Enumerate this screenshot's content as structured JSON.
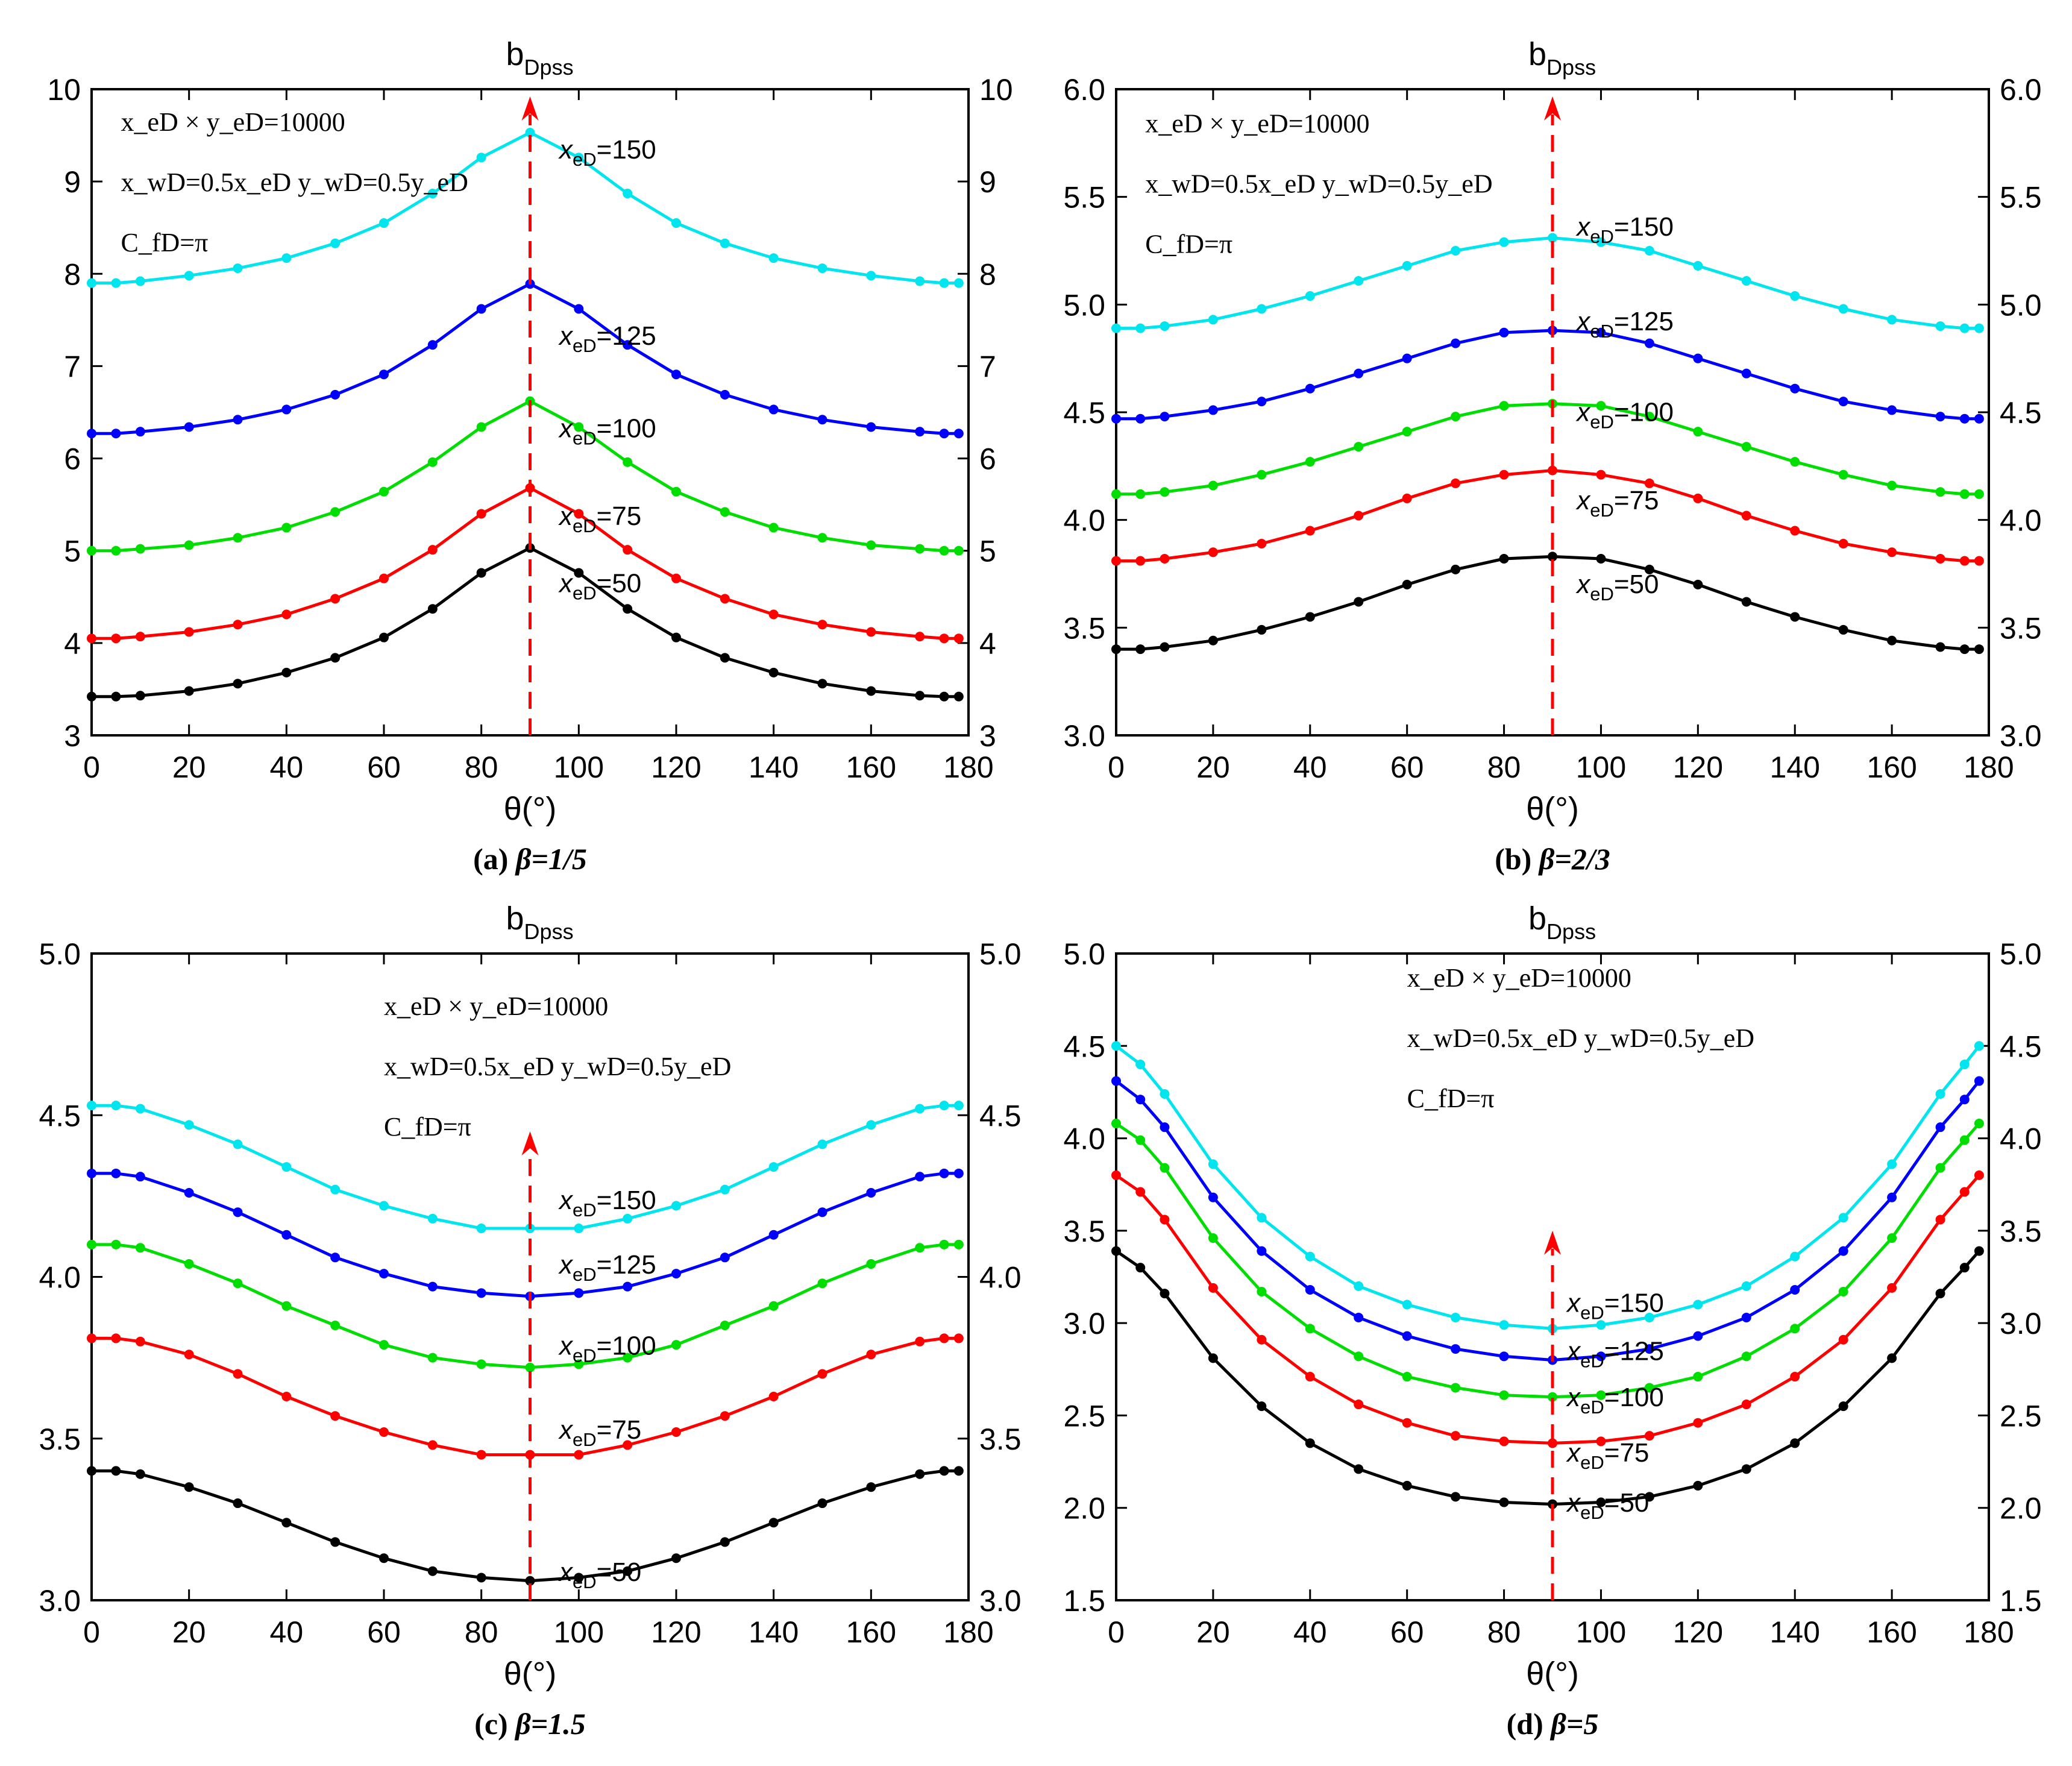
{
  "figure": {
    "x_values": [
      0,
      5,
      10,
      20,
      30,
      40,
      50,
      60,
      70,
      80,
      90,
      100,
      110,
      120,
      130,
      140,
      150,
      160,
      170,
      175,
      178
    ],
    "annotation": {
      "line1": "x_eD × y_eD=10000",
      "line2": "x_wD=0.5x_eD    y_wD=0.5y_eD",
      "line3": "C_fD=π"
    },
    "marker_theta": 90
  },
  "chart_data": [
    {
      "type": "line",
      "panel": "a",
      "title": "bDpss",
      "title_main": "b",
      "title_sub": "Dpss",
      "xlabel": "θ(°)",
      "caption_prefix": "(a)",
      "caption_beta": "β=1/5",
      "xlim": [
        0,
        180
      ],
      "ylim": [
        3,
        10
      ],
      "xticks": [
        0,
        20,
        40,
        60,
        80,
        100,
        120,
        140,
        160,
        180
      ],
      "yticks": [
        "3",
        "4",
        "5",
        "6",
        "7",
        "8",
        "9",
        "10"
      ],
      "series": [
        {
          "name": "xeD=50",
          "label_var": "x",
          "label_sub": "eD",
          "label_val": "=50",
          "color": "#000000",
          "values": [
            3.42,
            3.42,
            3.43,
            3.48,
            3.56,
            3.68,
            3.84,
            4.06,
            4.37,
            4.76,
            5.03,
            4.76,
            4.37,
            4.06,
            3.84,
            3.68,
            3.56,
            3.48,
            3.43,
            3.42,
            3.42
          ]
        },
        {
          "name": "xeD=75",
          "label_var": "x",
          "label_sub": "eD",
          "label_val": "=75",
          "color": "#ff0000",
          "values": [
            4.05,
            4.05,
            4.07,
            4.12,
            4.2,
            4.31,
            4.48,
            4.7,
            5.01,
            5.4,
            5.68,
            5.4,
            5.01,
            4.7,
            4.48,
            4.31,
            4.2,
            4.12,
            4.07,
            4.05,
            4.05
          ]
        },
        {
          "name": "xeD=100",
          "label_var": "x",
          "label_sub": "eD",
          "label_val": "=100",
          "color": "#00dd00",
          "values": [
            5.0,
            5.0,
            5.02,
            5.06,
            5.14,
            5.25,
            5.42,
            5.64,
            5.96,
            6.34,
            6.62,
            6.34,
            5.96,
            5.64,
            5.42,
            5.25,
            5.14,
            5.06,
            5.02,
            5.0,
            5.0
          ]
        },
        {
          "name": "xeD=125",
          "label_var": "x",
          "label_sub": "eD",
          "label_val": "=125",
          "color": "#0000ff",
          "values": [
            6.27,
            6.27,
            6.29,
            6.34,
            6.42,
            6.53,
            6.69,
            6.91,
            7.23,
            7.62,
            7.89,
            7.62,
            7.23,
            6.91,
            6.69,
            6.53,
            6.42,
            6.34,
            6.29,
            6.27,
            6.27
          ]
        },
        {
          "name": "xeD=150",
          "label_var": "x",
          "label_sub": "eD",
          "label_val": "=150",
          "color": "#00e5ee",
          "values": [
            7.9,
            7.9,
            7.92,
            7.98,
            8.06,
            8.17,
            8.33,
            8.55,
            8.87,
            9.26,
            9.53,
            9.26,
            8.87,
            8.55,
            8.33,
            8.17,
            8.06,
            7.98,
            7.92,
            7.9,
            7.9
          ]
        }
      ]
    },
    {
      "type": "line",
      "panel": "b",
      "title": "bDpss",
      "title_main": "b",
      "title_sub": "Dpss",
      "xlabel": "θ(°)",
      "caption_prefix": "(b)",
      "caption_beta": "β=2/3",
      "xlim": [
        0,
        180
      ],
      "ylim": [
        3.0,
        6.0
      ],
      "xticks": [
        0,
        20,
        40,
        60,
        80,
        100,
        120,
        140,
        160,
        180
      ],
      "yticks": [
        "3.0",
        "3.5",
        "4.0",
        "4.5",
        "5.0",
        "5.5",
        "6.0"
      ],
      "series": [
        {
          "name": "xeD=50",
          "label_var": "x",
          "label_sub": "eD",
          "label_val": "=50",
          "color": "#000000",
          "values": [
            3.4,
            3.4,
            3.41,
            3.44,
            3.49,
            3.55,
            3.62,
            3.7,
            3.77,
            3.82,
            3.83,
            3.82,
            3.77,
            3.7,
            3.62,
            3.55,
            3.49,
            3.44,
            3.41,
            3.4,
            3.4
          ]
        },
        {
          "name": "xeD=75",
          "label_var": "x",
          "label_sub": "eD",
          "label_val": "=75",
          "color": "#ff0000",
          "values": [
            3.81,
            3.81,
            3.82,
            3.85,
            3.89,
            3.95,
            4.02,
            4.1,
            4.17,
            4.21,
            4.23,
            4.21,
            4.17,
            4.1,
            4.02,
            3.95,
            3.89,
            3.85,
            3.82,
            3.81,
            3.81
          ]
        },
        {
          "name": "xeD=100",
          "label_var": "x",
          "label_sub": "eD",
          "label_val": "=100",
          "color": "#00dd00",
          "values": [
            4.12,
            4.12,
            4.13,
            4.16,
            4.21,
            4.27,
            4.34,
            4.41,
            4.48,
            4.53,
            4.54,
            4.53,
            4.48,
            4.41,
            4.34,
            4.27,
            4.21,
            4.16,
            4.13,
            4.12,
            4.12
          ]
        },
        {
          "name": "xeD=125",
          "label_var": "x",
          "label_sub": "eD",
          "label_val": "=125",
          "color": "#0000ff",
          "values": [
            4.47,
            4.47,
            4.48,
            4.51,
            4.55,
            4.61,
            4.68,
            4.75,
            4.82,
            4.87,
            4.88,
            4.87,
            4.82,
            4.75,
            4.68,
            4.61,
            4.55,
            4.51,
            4.48,
            4.47,
            4.47
          ]
        },
        {
          "name": "xeD=150",
          "label_var": "x",
          "label_sub": "eD",
          "label_val": "=150",
          "color": "#00e5ee",
          "values": [
            4.89,
            4.89,
            4.9,
            4.93,
            4.98,
            5.04,
            5.11,
            5.18,
            5.25,
            5.29,
            5.31,
            5.29,
            5.25,
            5.18,
            5.11,
            5.04,
            4.98,
            4.93,
            4.9,
            4.89,
            4.89
          ]
        }
      ]
    },
    {
      "type": "line",
      "panel": "c",
      "title": "bDpss",
      "title_main": "b",
      "title_sub": "Dpss",
      "xlabel": "θ(°)",
      "caption_prefix": "(c)",
      "caption_beta": "β=1.5",
      "xlim": [
        0,
        180
      ],
      "ylim": [
        3.0,
        5.0
      ],
      "xticks": [
        0,
        20,
        40,
        60,
        80,
        100,
        120,
        140,
        160,
        180
      ],
      "yticks": [
        "3.0",
        "3.5",
        "4.0",
        "4.5",
        "5.0"
      ],
      "series": [
        {
          "name": "xeD=50",
          "label_var": "x",
          "label_sub": "eD",
          "label_val": "=50",
          "color": "#000000",
          "values": [
            3.4,
            3.4,
            3.39,
            3.35,
            3.3,
            3.24,
            3.18,
            3.13,
            3.09,
            3.07,
            3.06,
            3.07,
            3.09,
            3.13,
            3.18,
            3.24,
            3.3,
            3.35,
            3.39,
            3.4,
            3.4
          ]
        },
        {
          "name": "xeD=75",
          "label_var": "x",
          "label_sub": "eD",
          "label_val": "=75",
          "color": "#ff0000",
          "values": [
            3.81,
            3.81,
            3.8,
            3.76,
            3.7,
            3.63,
            3.57,
            3.52,
            3.48,
            3.45,
            3.45,
            3.45,
            3.48,
            3.52,
            3.57,
            3.63,
            3.7,
            3.76,
            3.8,
            3.81,
            3.81
          ]
        },
        {
          "name": "xeD=100",
          "label_var": "x",
          "label_sub": "eD",
          "label_val": "=100",
          "color": "#00dd00",
          "values": [
            4.1,
            4.1,
            4.09,
            4.04,
            3.98,
            3.91,
            3.85,
            3.79,
            3.75,
            3.73,
            3.72,
            3.73,
            3.75,
            3.79,
            3.85,
            3.91,
            3.98,
            4.04,
            4.09,
            4.1,
            4.1
          ]
        },
        {
          "name": "xeD=125",
          "label_var": "x",
          "label_sub": "eD",
          "label_val": "=125",
          "color": "#0000ff",
          "values": [
            4.32,
            4.32,
            4.31,
            4.26,
            4.2,
            4.13,
            4.06,
            4.01,
            3.97,
            3.95,
            3.94,
            3.95,
            3.97,
            4.01,
            4.06,
            4.13,
            4.2,
            4.26,
            4.31,
            4.32,
            4.32
          ]
        },
        {
          "name": "xeD=150",
          "label_var": "x",
          "label_sub": "eD",
          "label_val": "=150",
          "color": "#00e5ee",
          "values": [
            4.53,
            4.53,
            4.52,
            4.47,
            4.41,
            4.34,
            4.27,
            4.22,
            4.18,
            4.15,
            4.15,
            4.15,
            4.18,
            4.22,
            4.27,
            4.34,
            4.41,
            4.47,
            4.52,
            4.53,
            4.53
          ]
        }
      ]
    },
    {
      "type": "line",
      "panel": "d",
      "title": "bDpss",
      "title_main": "b",
      "title_sub": "Dpss",
      "xlabel": "θ(°)",
      "caption_prefix": "(d)",
      "caption_beta": "β=5",
      "xlim": [
        0,
        180
      ],
      "ylim": [
        1.5,
        5.0
      ],
      "xticks": [
        0,
        20,
        40,
        60,
        80,
        100,
        120,
        140,
        160,
        180
      ],
      "yticks": [
        "1.5",
        "2.0",
        "2.5",
        "3.0",
        "3.5",
        "4.0",
        "4.5",
        "5.0"
      ],
      "series": [
        {
          "name": "xeD=50",
          "label_var": "x",
          "label_sub": "eD",
          "label_val": "=50",
          "color": "#000000",
          "values": [
            3.39,
            3.3,
            3.16,
            2.81,
            2.55,
            2.35,
            2.21,
            2.12,
            2.06,
            2.03,
            2.02,
            2.03,
            2.06,
            2.12,
            2.21,
            2.35,
            2.55,
            2.81,
            3.16,
            3.3,
            3.39
          ]
        },
        {
          "name": "xeD=75",
          "label_var": "x",
          "label_sub": "eD",
          "label_val": "=75",
          "color": "#ff0000",
          "values": [
            3.8,
            3.71,
            3.56,
            3.19,
            2.91,
            2.71,
            2.56,
            2.46,
            2.39,
            2.36,
            2.35,
            2.36,
            2.39,
            2.46,
            2.56,
            2.71,
            2.91,
            3.19,
            3.56,
            3.71,
            3.8
          ]
        },
        {
          "name": "xeD=100",
          "label_var": "x",
          "label_sub": "eD",
          "label_val": "=100",
          "color": "#00dd00",
          "values": [
            4.08,
            3.99,
            3.84,
            3.46,
            3.17,
            2.97,
            2.82,
            2.71,
            2.65,
            2.61,
            2.6,
            2.61,
            2.65,
            2.71,
            2.82,
            2.97,
            3.17,
            3.46,
            3.84,
            3.99,
            4.08
          ]
        },
        {
          "name": "xeD=125",
          "label_var": "x",
          "label_sub": "eD",
          "label_val": "=125",
          "color": "#0000ff",
          "values": [
            4.31,
            4.21,
            4.06,
            3.68,
            3.39,
            3.18,
            3.03,
            2.93,
            2.86,
            2.82,
            2.8,
            2.82,
            2.86,
            2.93,
            3.03,
            3.18,
            3.39,
            3.68,
            4.06,
            4.21,
            4.31
          ]
        },
        {
          "name": "xeD=150",
          "label_var": "x",
          "label_sub": "eD",
          "label_val": "=150",
          "color": "#00e5ee",
          "values": [
            4.5,
            4.4,
            4.24,
            3.86,
            3.57,
            3.36,
            3.2,
            3.1,
            3.03,
            2.99,
            2.97,
            2.99,
            3.03,
            3.1,
            3.2,
            3.36,
            3.57,
            3.86,
            4.24,
            4.4,
            4.5
          ]
        }
      ]
    }
  ]
}
